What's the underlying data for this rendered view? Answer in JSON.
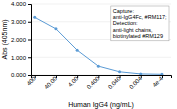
{
  "chart_data": {
    "type": "line",
    "x": [
      400,
      40,
      4,
      0.4,
      0.04,
      0.004,
      0.0004
    ],
    "values": [
      3.25,
      2.6,
      1.4,
      0.5,
      0.18,
      0.06,
      0.04
    ],
    "color": "#5b9bd5",
    "marker": "circle",
    "xlabel": "Human IgG4 (ng/mL)",
    "ylabel": "Abs (405nm)",
    "log": "x",
    "xlim": [
      600,
      0.00015
    ],
    "xticks": [
      400,
      {
        "value": 40,
        "label": "40.00"
      },
      {
        "value": 4,
        "label": "4.00"
      },
      {
        "value": 0.4,
        "label": "0.400"
      },
      {
        "value": 0.04,
        "label": "0.040"
      },
      0.004,
      {
        "value": 0.0004,
        "label": "4e-4"
      }
    ],
    "ylim": [
      0,
      4.0
    ],
    "yticks": [
      {
        "value": 0,
        "label": "0.000"
      },
      {
        "value": 1,
        "label": "1.000"
      },
      {
        "value": 2,
        "label": "2.000"
      },
      {
        "value": 3,
        "label": "3.000"
      },
      {
        "value": 4,
        "label": "4.000"
      }
    ],
    "grid": true,
    "annotation": [
      "Capture:",
      "anti-IgG4Fc, #RM117;",
      "Detection:",
      "anti-light chains,",
      "biotinylated #RM129"
    ]
  }
}
